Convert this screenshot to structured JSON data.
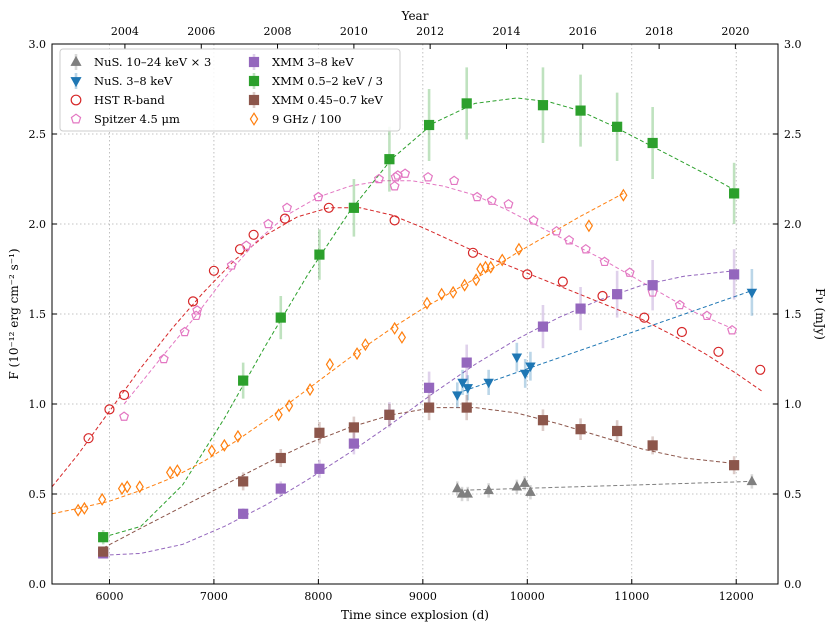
{
  "chart_data": {
    "type": "scatter",
    "xlabel": "Time since explosion (d)",
    "ylabel_left": "F (10⁻¹² erg cm⁻² s⁻¹)",
    "ylabel_right": "Fν (mJy)",
    "top_axis_label": "Year",
    "xlim": [
      5450,
      12400
    ],
    "ylim": [
      0,
      3
    ],
    "grid": true,
    "legend_position": "upper-left",
    "x_ticks": [
      6000,
      7000,
      8000,
      9000,
      10000,
      11000,
      12000
    ],
    "y_ticks": [
      0.0,
      0.5,
      1.0,
      1.5,
      2.0,
      2.5,
      3.0
    ],
    "y_tick_labels": [
      "0.0",
      "0.5",
      "1.0",
      "1.5",
      "2.0",
      "2.5",
      "3.0"
    ],
    "top_ticks": [
      {
        "label": "2004",
        "day": 6148
      },
      {
        "label": "2006",
        "day": 6879
      },
      {
        "label": "2008",
        "day": 7609
      },
      {
        "label": "2010",
        "day": 8340
      },
      {
        "label": "2012",
        "day": 9070
      },
      {
        "label": "2014",
        "day": 9801
      },
      {
        "label": "2016",
        "day": 10531
      },
      {
        "label": "2018",
        "day": 11262
      },
      {
        "label": "2020",
        "day": 11992
      }
    ],
    "series": [
      {
        "name": "NuS. 10–24 keV × 3",
        "marker": "triangle-up",
        "color": "#7f7f7f",
        "filled": true,
        "x": [
          9330,
          9375,
          9430,
          9630,
          9900,
          9975,
          10030,
          12150
        ],
        "y": [
          0.53,
          0.5,
          0.5,
          0.52,
          0.54,
          0.56,
          0.51,
          0.57
        ],
        "err": [
          0.04,
          0.04,
          0.04,
          0.04,
          0.04,
          0.04,
          0.04,
          0.04
        ],
        "fit_x": [
          9330,
          12150
        ],
        "fit_y": [
          0.52,
          0.57
        ]
      },
      {
        "name": "NuS. 3–8 keV",
        "marker": "triangle-down",
        "color": "#1f77b4",
        "filled": true,
        "x": [
          9330,
          9380,
          9430,
          9630,
          9900,
          9980,
          10030,
          12150
        ],
        "y": [
          1.05,
          1.12,
          1.09,
          1.12,
          1.26,
          1.17,
          1.21,
          1.62
        ],
        "err": [
          0.07,
          0.07,
          0.07,
          0.07,
          0.08,
          0.08,
          0.08,
          0.13
        ],
        "fit_x": [
          9330,
          12150
        ],
        "fit_y": [
          1.06,
          1.63
        ]
      },
      {
        "name": "HST R-band",
        "marker": "circle",
        "color": "#d62728",
        "filled": false,
        "x": [
          5800,
          6000,
          6140,
          6800,
          7000,
          7250,
          7380,
          7680,
          8100,
          8730,
          9480,
          10000,
          10340,
          10720,
          11120,
          11480,
          11830,
          12230
        ],
        "y": [
          0.81,
          0.97,
          1.05,
          1.57,
          1.74,
          1.86,
          1.94,
          2.03,
          2.09,
          2.02,
          1.84,
          1.72,
          1.68,
          1.6,
          1.48,
          1.4,
          1.29,
          1.19
        ],
        "fit_x": [
          5450,
          5700,
          6000,
          6300,
          6600,
          6900,
          7200,
          7500,
          7800,
          8100,
          8400,
          8700,
          9000,
          9300,
          9600,
          9900,
          10200,
          10500,
          10800,
          11100,
          11400,
          11700,
          12000,
          12250
        ],
        "fit_y": [
          0.54,
          0.72,
          0.96,
          1.2,
          1.42,
          1.62,
          1.8,
          1.94,
          2.04,
          2.09,
          2.09,
          2.05,
          1.98,
          1.9,
          1.82,
          1.75,
          1.68,
          1.61,
          1.54,
          1.47,
          1.38,
          1.28,
          1.17,
          1.07
        ]
      },
      {
        "name": "Spitzer 4.5 μm",
        "marker": "pentagon",
        "color": "#e377c2",
        "filled": false,
        "x": [
          6140,
          6520,
          6720,
          6830,
          6840,
          7170,
          7310,
          7520,
          7700,
          8000,
          8580,
          8730,
          8740,
          8760,
          8830,
          9050,
          9300,
          9520,
          9660,
          9820,
          10060,
          10280,
          10400,
          10560,
          10740,
          10980,
          11200,
          11460,
          11720,
          11960
        ],
        "y": [
          0.93,
          1.25,
          1.4,
          1.49,
          1.52,
          1.77,
          1.88,
          2.0,
          2.09,
          2.15,
          2.25,
          2.21,
          2.26,
          2.27,
          2.28,
          2.26,
          2.24,
          2.15,
          2.13,
          2.11,
          2.02,
          1.96,
          1.91,
          1.86,
          1.79,
          1.73,
          1.62,
          1.55,
          1.49,
          1.41
        ],
        "fit_x": [
          6140,
          6500,
          6800,
          7100,
          7400,
          7700,
          8000,
          8300,
          8600,
          8900,
          9200,
          9500,
          9800,
          10100,
          10400,
          10700,
          11000,
          11300,
          11600,
          11960
        ],
        "fit_y": [
          1.0,
          1.26,
          1.47,
          1.7,
          1.9,
          2.05,
          2.15,
          2.21,
          2.24,
          2.24,
          2.21,
          2.16,
          2.08,
          1.99,
          1.9,
          1.81,
          1.71,
          1.61,
          1.51,
          1.42
        ]
      },
      {
        "name": "XMM 3–8 keV",
        "marker": "square",
        "color": "#9467bd",
        "filled": true,
        "x": [
          5940,
          7280,
          7640,
          8010,
          8340,
          8680,
          9060,
          9420,
          10150,
          10510,
          10860,
          11200,
          11980
        ],
        "y": [
          0.17,
          0.39,
          0.53,
          0.64,
          0.78,
          0.94,
          1.09,
          1.23,
          1.43,
          1.53,
          1.61,
          1.66,
          1.72
        ],
        "err": [
          0.02,
          0.03,
          0.04,
          0.05,
          0.06,
          0.07,
          0.09,
          0.1,
          0.12,
          0.12,
          0.13,
          0.14,
          0.14
        ],
        "fit_x": [
          5940,
          6300,
          6700,
          7100,
          7500,
          7900,
          8300,
          8700,
          9100,
          9500,
          9900,
          10300,
          10700,
          11100,
          11500,
          11980
        ],
        "fit_y": [
          0.16,
          0.17,
          0.22,
          0.32,
          0.44,
          0.58,
          0.73,
          0.89,
          1.06,
          1.22,
          1.36,
          1.48,
          1.58,
          1.66,
          1.71,
          1.74
        ]
      },
      {
        "name": "XMM 0.5–2 keV / 3",
        "marker": "square",
        "color": "#2ca02c",
        "filled": true,
        "x": [
          5940,
          7280,
          7640,
          8010,
          8340,
          8680,
          9060,
          9420,
          10150,
          10510,
          10860,
          11200,
          11980
        ],
        "y": [
          0.26,
          1.13,
          1.48,
          1.83,
          2.09,
          2.36,
          2.55,
          2.67,
          2.66,
          2.63,
          2.54,
          2.45,
          2.17
        ],
        "err": [
          0.04,
          0.1,
          0.12,
          0.14,
          0.16,
          0.18,
          0.2,
          0.2,
          0.21,
          0.2,
          0.19,
          0.2,
          0.17
        ],
        "fit_x": [
          5940,
          6300,
          6700,
          7100,
          7500,
          7900,
          8300,
          8700,
          9100,
          9500,
          9900,
          10200,
          10500,
          10800,
          11100,
          11400,
          11700,
          11980
        ],
        "fit_y": [
          0.26,
          0.32,
          0.55,
          0.92,
          1.33,
          1.72,
          2.07,
          2.36,
          2.56,
          2.67,
          2.7,
          2.68,
          2.63,
          2.55,
          2.46,
          2.37,
          2.28,
          2.19
        ]
      },
      {
        "name": "XMM 0.45–0.7 keV",
        "marker": "square",
        "color": "#8c564b",
        "filled": true,
        "x": [
          5940,
          7280,
          7640,
          8010,
          8340,
          8680,
          9060,
          9420,
          10150,
          10510,
          10860,
          11200,
          11980
        ],
        "y": [
          0.18,
          0.57,
          0.7,
          0.84,
          0.87,
          0.94,
          0.98,
          0.98,
          0.91,
          0.86,
          0.85,
          0.77,
          0.66
        ],
        "err": [
          0.02,
          0.05,
          0.05,
          0.06,
          0.06,
          0.06,
          0.07,
          0.07,
          0.06,
          0.06,
          0.06,
          0.05,
          0.05
        ],
        "fit_x": [
          5940,
          6300,
          6700,
          7100,
          7500,
          7900,
          8300,
          8700,
          9100,
          9500,
          9900,
          10300,
          10700,
          11100,
          11500,
          11980
        ],
        "fit_y": [
          0.2,
          0.31,
          0.43,
          0.55,
          0.67,
          0.78,
          0.87,
          0.94,
          0.98,
          0.98,
          0.95,
          0.89,
          0.82,
          0.75,
          0.7,
          0.67
        ]
      },
      {
        "name": "9 GHz / 100",
        "marker": "diamond",
        "color": "#ff7f0e",
        "filled": false,
        "x": [
          5700,
          5760,
          5930,
          6120,
          6170,
          6290,
          6580,
          6650,
          6980,
          7100,
          7230,
          7620,
          7720,
          7920,
          8110,
          8370,
          8450,
          8730,
          8800,
          9040,
          9180,
          9290,
          9400,
          9510,
          9550,
          9600,
          9650,
          9760,
          9920,
          10590,
          10920
        ],
        "y": [
          0.41,
          0.42,
          0.47,
          0.53,
          0.54,
          0.54,
          0.62,
          0.63,
          0.74,
          0.77,
          0.82,
          0.94,
          0.99,
          1.08,
          1.22,
          1.28,
          1.33,
          1.42,
          1.37,
          1.56,
          1.61,
          1.62,
          1.66,
          1.69,
          1.75,
          1.76,
          1.76,
          1.8,
          1.86,
          1.99,
          2.16
        ],
        "fit_x": [
          5450,
          5700,
          6000,
          6300,
          6600,
          6900,
          7200,
          7500,
          7800,
          8100,
          8400,
          8700,
          9000,
          9300,
          9600,
          9900,
          10200,
          10500,
          10920
        ],
        "fit_y": [
          0.39,
          0.42,
          0.46,
          0.52,
          0.59,
          0.68,
          0.79,
          0.91,
          1.04,
          1.17,
          1.3,
          1.42,
          1.53,
          1.63,
          1.73,
          1.84,
          1.94,
          2.04,
          2.17
        ]
      }
    ],
    "legend_columns": [
      [
        "NuS. 10–24 keV × 3",
        "NuS. 3–8 keV",
        "HST R-band",
        "Spitzer 4.5 μm"
      ],
      [
        "XMM 3–8 keV",
        "XMM 0.5–2 keV / 3",
        "XMM 0.45–0.7 keV",
        "9 GHz / 100"
      ]
    ]
  }
}
